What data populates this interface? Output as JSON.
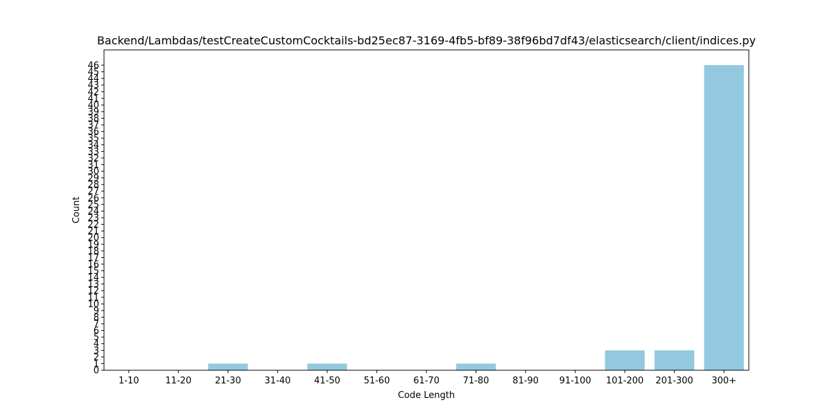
{
  "chart_data": {
    "type": "bar",
    "title": "Backend/Lambdas/testCreateCustomCocktails-bd25ec87-3169-4fb5-bf89-38f96bd7df43/elasticsearch/client/indices.py",
    "xlabel": "Code Length",
    "ylabel": "Count",
    "categories": [
      "1-10",
      "11-20",
      "21-30",
      "31-40",
      "41-50",
      "51-60",
      "61-70",
      "71-80",
      "81-90",
      "91-100",
      "101-200",
      "201-300",
      "300+"
    ],
    "values": [
      0,
      0,
      1,
      0,
      1,
      0,
      0,
      1,
      0,
      0,
      3,
      3,
      46
    ],
    "ylim": [
      0,
      48.3
    ],
    "yticks": [
      0,
      1,
      2,
      3,
      4,
      5,
      6,
      7,
      8,
      9,
      10,
      11,
      12,
      13,
      14,
      15,
      16,
      17,
      18,
      19,
      20,
      21,
      22,
      23,
      24,
      25,
      26,
      27,
      28,
      29,
      30,
      31,
      32,
      33,
      34,
      35,
      36,
      37,
      38,
      39,
      40,
      41,
      42,
      43,
      44,
      45,
      46
    ],
    "bar_color": "#92c9df",
    "grid": false,
    "legend": false
  }
}
